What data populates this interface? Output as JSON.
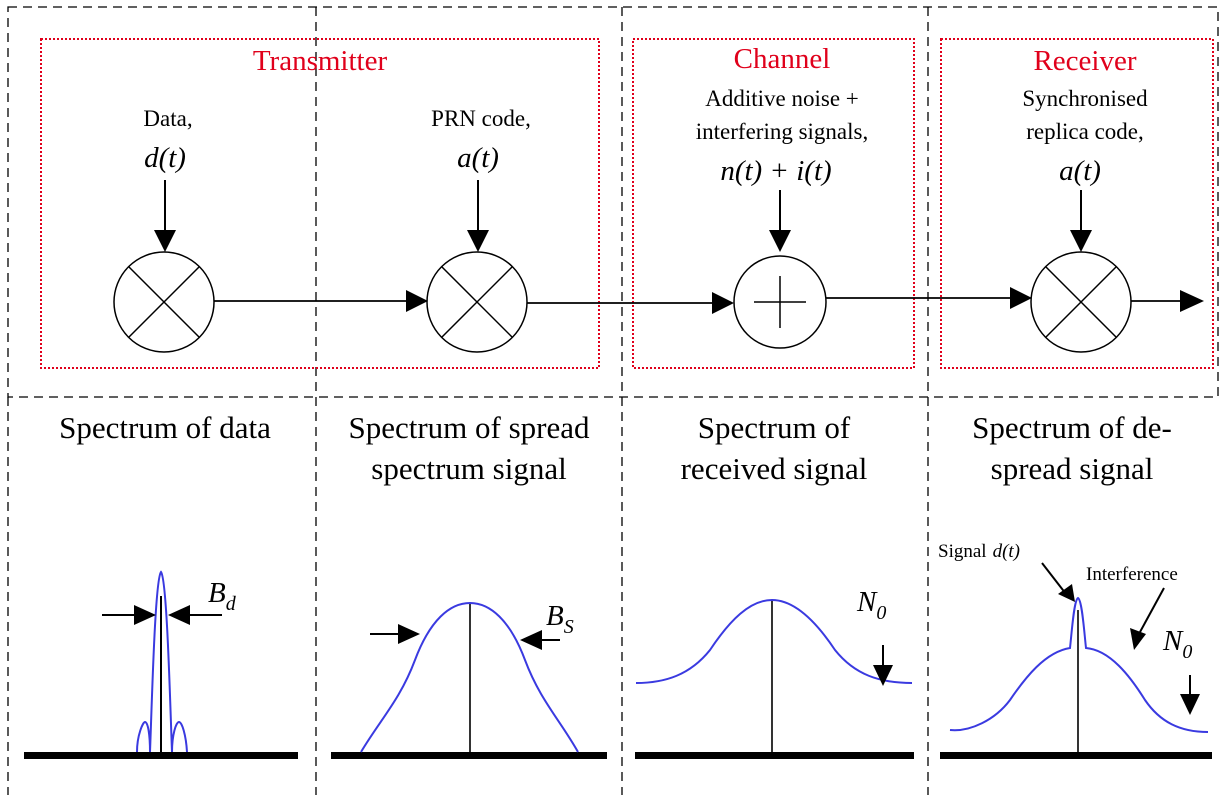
{
  "sections": {
    "transmitter": "Transmitter",
    "channel": "Channel",
    "receiver": "Receiver"
  },
  "inputs": {
    "data_label": "Data,",
    "data_symbol": "d(t)",
    "prn_label": "PRN code,",
    "prn_symbol": "a(t)",
    "channel_label_1": "Additive noise +",
    "channel_label_2": "interfering signals,",
    "channel_symbol": "n(t) + i(t)",
    "replica_label_1": "Synchronised",
    "replica_label_2": "replica code,",
    "replica_symbol": "a(t)"
  },
  "operators": {
    "multiplier": "multiplier-symbol",
    "adder": "adder-symbol"
  },
  "spectra": {
    "data_title": "Spectrum of data",
    "spread_title_1": "Spectrum of spread",
    "spread_title_2": "spectrum signal",
    "received_title_1": "Spectrum of",
    "received_title_2": "received signal",
    "despread_title_1": "Spectrum of de-",
    "despread_title_2": "spread signal"
  },
  "annotations": {
    "bd_main": "B",
    "bd_sub": "d",
    "bs_main": "B",
    "bs_sub": "S",
    "n0_received_main": "N",
    "n0_received_sub": "0",
    "n0_despread_main": "N",
    "n0_despread_sub": "0",
    "signal_label": "Signal",
    "signal_symbol": "d(t)",
    "interference_label": "Interference"
  },
  "colors": {
    "section_box": "#e0001b",
    "curve": "#3a3ae0",
    "line": "#000000"
  }
}
